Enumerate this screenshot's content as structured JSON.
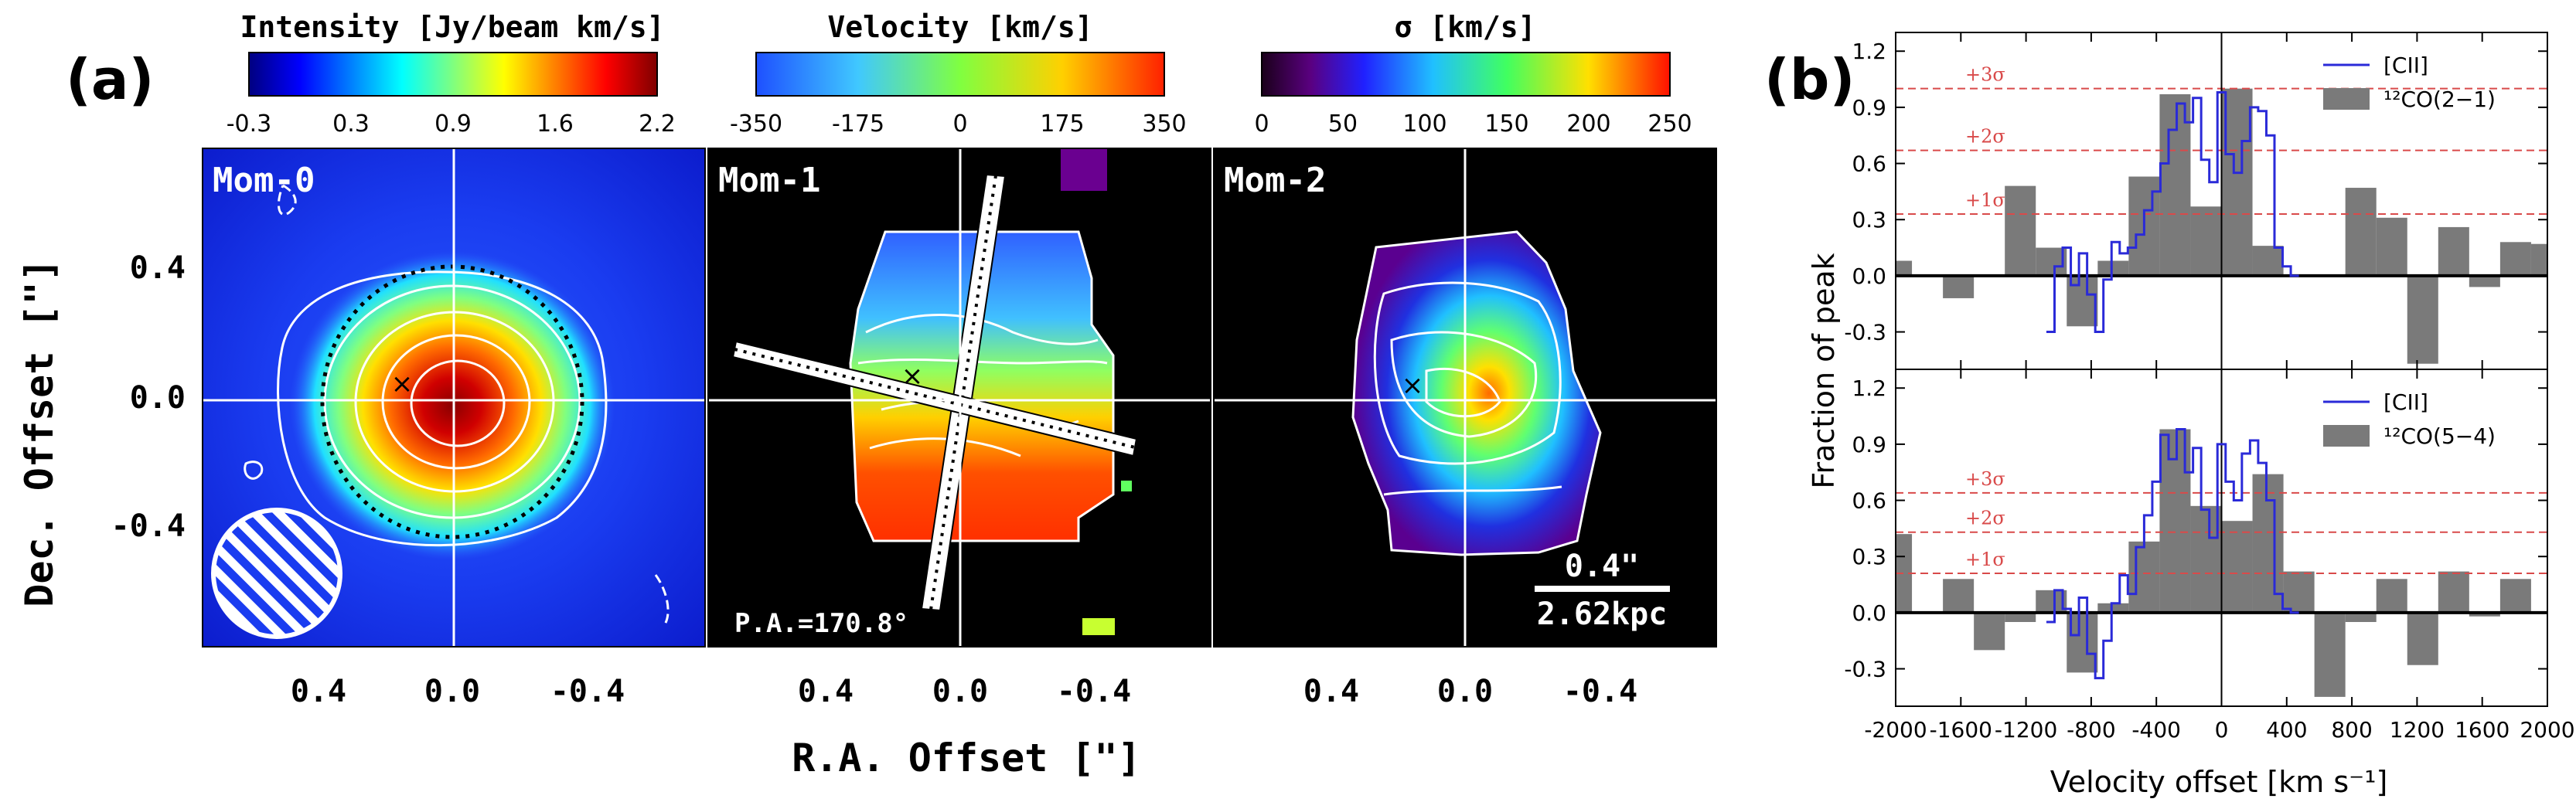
{
  "panel_a": {
    "label": "(a)",
    "xlabel": "R.A. Offset [\"]",
    "ylabel": "Dec. Offset [\"]",
    "yticks": [
      "0.4",
      "0.0",
      "-0.4"
    ],
    "xticks": [
      "0.4",
      "0.0",
      "-0.4"
    ],
    "maps": [
      {
        "label": "Mom-0",
        "colorbar_title": "Intensity [Jy/beam km/s]",
        "colorbar_ticks": [
          "-0.3",
          "0.3",
          "0.9",
          "1.6",
          "2.2"
        ],
        "colormap": "jet"
      },
      {
        "label": "Mom-1",
        "colorbar_title": "Velocity [km/s]",
        "colorbar_ticks": [
          "-350",
          "-175",
          "0",
          "175",
          "350"
        ],
        "colormap": "jet",
        "annotation": "P.A.=170.8°"
      },
      {
        "label": "Mom-2",
        "colorbar_title": "σ [km/s]",
        "colorbar_ticks": [
          "0",
          "50",
          "100",
          "150",
          "200",
          "250"
        ],
        "colormap": "rainbow",
        "scalebar_top": "0.4\"",
        "scalebar_bottom": "2.62kpc"
      }
    ]
  },
  "panel_b": {
    "label": "(b)",
    "xlabel": "Velocity offset [km s⁻¹]",
    "ylabel": "Fraction of peak",
    "xticks": [
      "-2000",
      "-1600",
      "-1200",
      "-800",
      "-400",
      "0",
      "400",
      "800",
      "1200",
      "1600",
      "2000"
    ],
    "yticks": [
      "1.2",
      "0.9",
      "0.6",
      "0.3",
      "0.0",
      "-0.3"
    ],
    "colors": {
      "cii": "#2a2ad8",
      "co": "#7a7a7a",
      "sigma": "#d94a4a"
    }
  },
  "chart_data": [
    {
      "type": "bar",
      "legend": [
        "[CII]",
        "¹²CO(2−1)"
      ],
      "legend_position": "top-right",
      "xlim": [
        -2000,
        2000
      ],
      "ylim": [
        -0.5,
        1.3
      ],
      "sigma_lines": [
        {
          "label": "+1σ",
          "y": 0.33
        },
        {
          "label": "+2σ",
          "y": 0.67
        },
        {
          "label": "+3σ",
          "y": 1.0
        }
      ],
      "co": {
        "bin_width": 190,
        "x": [
          -1995,
          -1805,
          -1615,
          -1425,
          -1235,
          -1045,
          -855,
          -665,
          -475,
          -285,
          -95,
          95,
          285,
          475,
          665,
          855,
          1045,
          1235,
          1425,
          1615,
          1805,
          1995
        ],
        "y": [
          0.08,
          0.0,
          -0.12,
          0.0,
          0.48,
          0.15,
          -0.27,
          0.08,
          0.53,
          0.97,
          0.37,
          1.0,
          0.16,
          0.0,
          0.0,
          0.47,
          0.31,
          -0.47,
          0.26,
          -0.06,
          0.18,
          0.17
        ]
      },
      "cii": {
        "x": [
          -1050,
          -1000,
          -950,
          -900,
          -850,
          -800,
          -750,
          -700,
          -650,
          -600,
          -550,
          -500,
          -450,
          -400,
          -350,
          -300,
          -250,
          -200,
          -150,
          -100,
          -50,
          0,
          50,
          100,
          150,
          200,
          250,
          300,
          350,
          400,
          450
        ],
        "y": [
          -0.3,
          0.05,
          0.15,
          -0.05,
          0.12,
          -0.1,
          -0.3,
          -0.02,
          0.18,
          0.12,
          0.15,
          0.22,
          0.35,
          0.45,
          0.6,
          0.78,
          0.92,
          0.82,
          0.95,
          0.62,
          0.5,
          0.98,
          0.65,
          0.55,
          0.72,
          0.9,
          0.88,
          0.75,
          0.15,
          0.05,
          0.0
        ]
      }
    },
    {
      "type": "bar",
      "legend": [
        "[CII]",
        "¹²CO(5−4)"
      ],
      "legend_position": "top-right",
      "xlim": [
        -2000,
        2000
      ],
      "ylim": [
        -0.5,
        1.3
      ],
      "sigma_lines": [
        {
          "label": "+1σ",
          "y": 0.21
        },
        {
          "label": "+2σ",
          "y": 0.43
        },
        {
          "label": "+3σ",
          "y": 0.64
        }
      ],
      "co": {
        "bin_width": 190,
        "x": [
          -1995,
          -1805,
          -1615,
          -1425,
          -1235,
          -1045,
          -855,
          -665,
          -475,
          -285,
          -95,
          95,
          285,
          475,
          665,
          855,
          1045,
          1235,
          1425,
          1615,
          1805,
          1995
        ],
        "y": [
          0.42,
          0.0,
          0.18,
          -0.2,
          -0.05,
          0.12,
          -0.32,
          0.05,
          0.38,
          0.98,
          0.57,
          0.49,
          0.74,
          0.22,
          -0.45,
          -0.05,
          0.18,
          -0.28,
          0.22,
          -0.02,
          0.18,
          0.0
        ]
      },
      "cii": {
        "x": [
          -1050,
          -1000,
          -950,
          -900,
          -850,
          -800,
          -750,
          -700,
          -650,
          -600,
          -550,
          -500,
          -450,
          -400,
          -350,
          -300,
          -250,
          -200,
          -150,
          -100,
          -50,
          0,
          50,
          100,
          150,
          200,
          250,
          300,
          350,
          400,
          450
        ],
        "y": [
          -0.05,
          0.12,
          0.02,
          -0.12,
          0.08,
          -0.22,
          -0.35,
          -0.15,
          0.05,
          0.2,
          0.1,
          0.35,
          0.52,
          0.7,
          0.95,
          0.82,
          0.98,
          0.75,
          0.88,
          0.55,
          0.4,
          0.9,
          0.7,
          0.6,
          0.85,
          0.92,
          0.8,
          0.6,
          0.1,
          0.02,
          0.0
        ]
      }
    }
  ]
}
